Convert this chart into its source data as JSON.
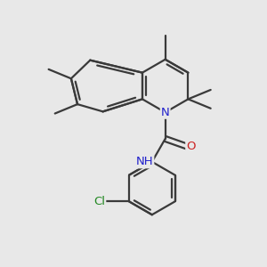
{
  "bg_color": "#e8e8e8",
  "bond_color": "#3a3a3a",
  "N_color": "#2222cc",
  "O_color": "#cc2222",
  "Cl_color": "#228822",
  "lw": 1.6,
  "fs": 9.5,
  "xlim": [
    0,
    10
  ],
  "ylim": [
    0,
    10
  ]
}
